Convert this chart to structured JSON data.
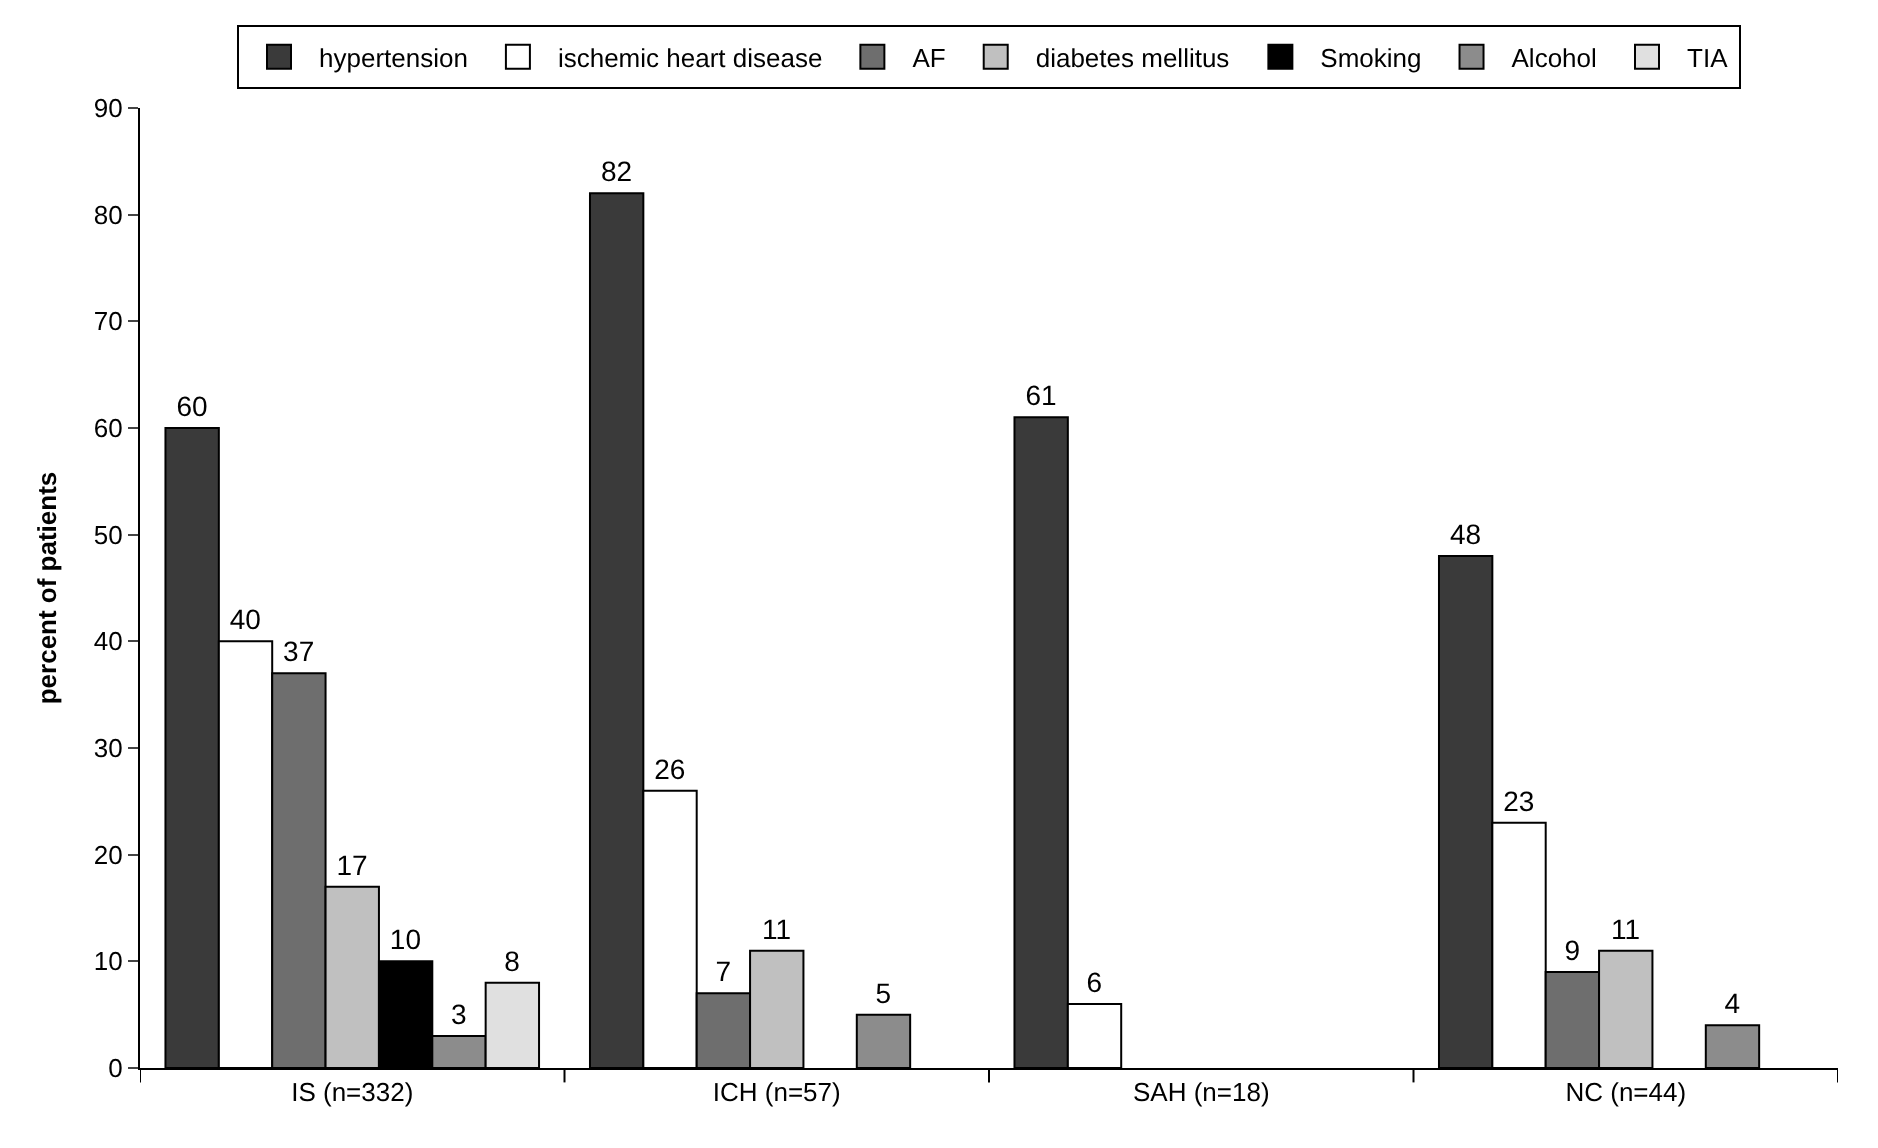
{
  "chart_data": {
    "type": "bar",
    "ylabel": "percent of patients",
    "categories": [
      "IS (n=332)",
      "ICH (n=57)",
      "SAH (n=18)",
      "NC (n=44)"
    ],
    "series": [
      {
        "name": "hypertension",
        "color": "#3a3a3a",
        "values": [
          60,
          82,
          61,
          48
        ]
      },
      {
        "name": "ischemic heart disease",
        "color": "#ffffff",
        "values": [
          40,
          26,
          6,
          23
        ]
      },
      {
        "name": "AF",
        "color": "#6e6e6e",
        "values": [
          37,
          7,
          null,
          9
        ]
      },
      {
        "name": "diabetes mellitus",
        "color": "#c0c0c0",
        "values": [
          17,
          11,
          null,
          11
        ]
      },
      {
        "name": "Smoking",
        "color": "#000000",
        "values": [
          10,
          null,
          null,
          null
        ]
      },
      {
        "name": "Alcohol",
        "color": "#8c8c8c",
        "values": [
          3,
          5,
          null,
          4
        ]
      },
      {
        "name": "TIA",
        "color": "#e0e0e0",
        "values": [
          8,
          null,
          null,
          null
        ]
      }
    ],
    "ylim": [
      0,
      90
    ],
    "yticks": [
      0,
      10,
      20,
      30,
      40,
      50,
      60,
      70,
      80,
      90
    ],
    "grid": false,
    "legend": "top",
    "data_labels": true
  }
}
